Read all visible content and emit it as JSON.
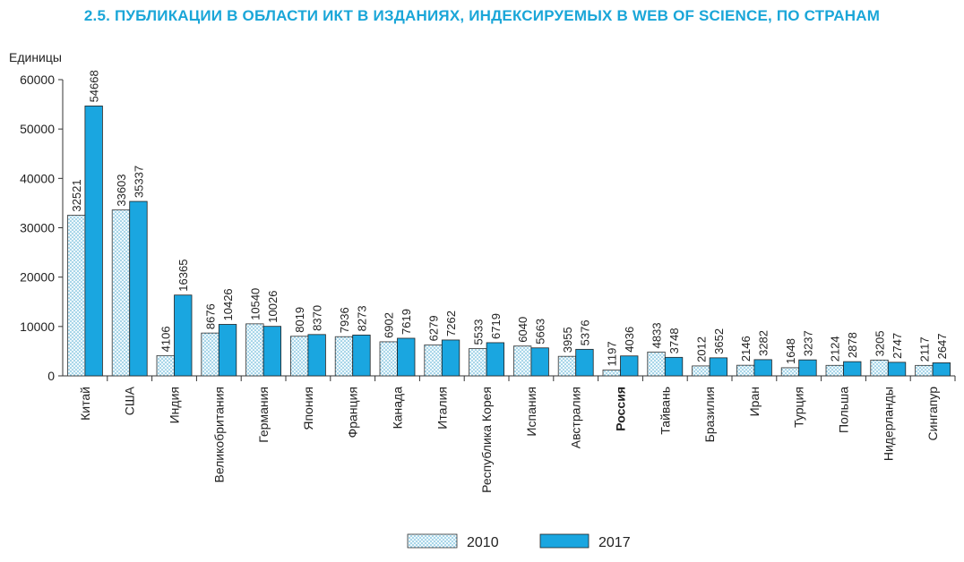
{
  "title": "2.5. ПУБЛИКАЦИИ В ОБЛАСТИ ИКТ В ИЗДАНИЯХ, ИНДЕКСИРУЕМЫХ В WEB OF SCIENCE, ПО СТРАНАМ",
  "colors": {
    "title": "#1aa6d8",
    "series_2017": "#1aa6e0",
    "series_2010_fill": "#eef8fc",
    "series_2010_dots": "#4aa8d0"
  },
  "chart_data": {
    "type": "bar",
    "ylabel": "Единицы",
    "ylim": [
      0,
      60000
    ],
    "yticks": [
      "0",
      "10000",
      "20000",
      "30000",
      "40000",
      "50000",
      "60000"
    ],
    "categories": [
      "Китай",
      "США",
      "Индия",
      "Великобритания",
      "Германия",
      "Япония",
      "Франция",
      "Канада",
      "Италия",
      "Республика Корея",
      "Испания",
      "Австралия",
      "Россия",
      "Тайвань",
      "Бразилия",
      "Иран",
      "Турция",
      "Польша",
      "Нидерланды",
      "Сингапур"
    ],
    "highlight_category": "Россия",
    "series": [
      {
        "name": "2010",
        "values": [
          32521,
          33603,
          4106,
          8676,
          10540,
          8019,
          7936,
          6902,
          6279,
          5533,
          6040,
          3955,
          1197,
          4833,
          2012,
          2146,
          1648,
          2124,
          3205,
          2117
        ]
      },
      {
        "name": "2017",
        "values": [
          54668,
          35337,
          16365,
          10426,
          10026,
          8370,
          8273,
          7619,
          7262,
          6719,
          5663,
          5376,
          4036,
          3748,
          3652,
          3282,
          3237,
          2878,
          2747,
          2647
        ]
      }
    ],
    "legend_position": "bottom-center",
    "grid": false
  }
}
